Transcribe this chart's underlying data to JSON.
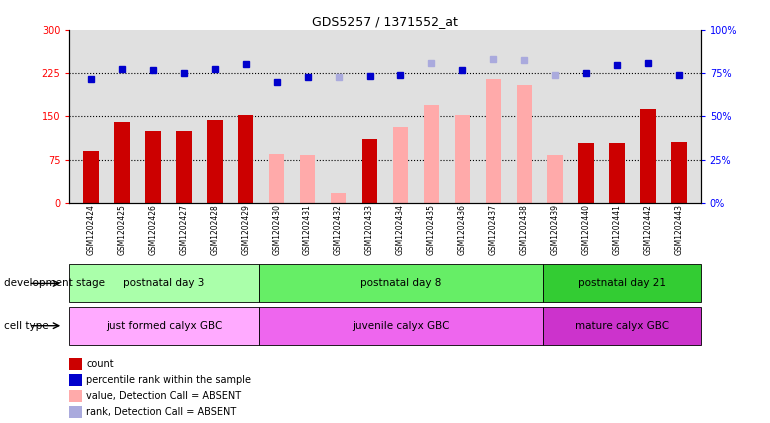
{
  "title": "GDS5257 / 1371552_at",
  "samples": [
    "GSM1202424",
    "GSM1202425",
    "GSM1202426",
    "GSM1202427",
    "GSM1202428",
    "GSM1202429",
    "GSM1202430",
    "GSM1202431",
    "GSM1202432",
    "GSM1202433",
    "GSM1202434",
    "GSM1202435",
    "GSM1202436",
    "GSM1202437",
    "GSM1202438",
    "GSM1202439",
    "GSM1202440",
    "GSM1202441",
    "GSM1202442",
    "GSM1202443"
  ],
  "count_values": [
    90,
    140,
    125,
    125,
    143,
    152,
    85,
    83,
    18,
    110,
    132,
    170,
    152,
    215,
    205,
    83,
    103,
    103,
    162,
    105
  ],
  "count_absent": [
    false,
    false,
    false,
    false,
    false,
    false,
    true,
    true,
    true,
    false,
    true,
    true,
    true,
    true,
    true,
    true,
    false,
    false,
    false,
    false
  ],
  "percentile_values": [
    215,
    232,
    230,
    225,
    232,
    240,
    210,
    218,
    218,
    220,
    222,
    242,
    230,
    250,
    248,
    222,
    225,
    238,
    242,
    222
  ],
  "percentile_absent": [
    false,
    false,
    false,
    false,
    false,
    false,
    false,
    false,
    true,
    false,
    false,
    true,
    false,
    true,
    true,
    true,
    false,
    false,
    false,
    false
  ],
  "ylim_left": [
    0,
    300
  ],
  "ylim_right": [
    0,
    100
  ],
  "yticks_left": [
    0,
    75,
    150,
    225,
    300
  ],
  "yticks_right": [
    0,
    25,
    50,
    75,
    100
  ],
  "ytick_labels_left": [
    "0",
    "75",
    "150",
    "225",
    "300"
  ],
  "ytick_labels_right": [
    "0%",
    "25%",
    "50%",
    "75%",
    "100%"
  ],
  "hlines": [
    75,
    150,
    225
  ],
  "groups": [
    {
      "label": "postnatal day 3",
      "start": 0,
      "end": 6,
      "color": "#aaffaa"
    },
    {
      "label": "postnatal day 8",
      "start": 6,
      "end": 15,
      "color": "#66ee66"
    },
    {
      "label": "postnatal day 21",
      "start": 15,
      "end": 20,
      "color": "#33cc33"
    }
  ],
  "cell_types": [
    {
      "label": "just formed calyx GBC",
      "start": 0,
      "end": 6,
      "color": "#ffaaff"
    },
    {
      "label": "juvenile calyx GBC",
      "start": 6,
      "end": 15,
      "color": "#ee66ee"
    },
    {
      "label": "mature calyx GBC",
      "start": 15,
      "end": 20,
      "color": "#cc33cc"
    }
  ],
  "bar_color_present": "#cc0000",
  "bar_color_absent": "#ffaaaa",
  "dot_color_present": "#0000cc",
  "dot_color_absent": "#aaaadd",
  "dev_stage_label": "development stage",
  "cell_type_label": "cell type",
  "legend_items": [
    {
      "color": "#cc0000",
      "label": "count"
    },
    {
      "color": "#0000cc",
      "label": "percentile rank within the sample"
    },
    {
      "color": "#ffaaaa",
      "label": "value, Detection Call = ABSENT"
    },
    {
      "color": "#aaaadd",
      "label": "rank, Detection Call = ABSENT"
    }
  ],
  "background_color": "#ffffff",
  "axis_bg": "#e0e0e0"
}
